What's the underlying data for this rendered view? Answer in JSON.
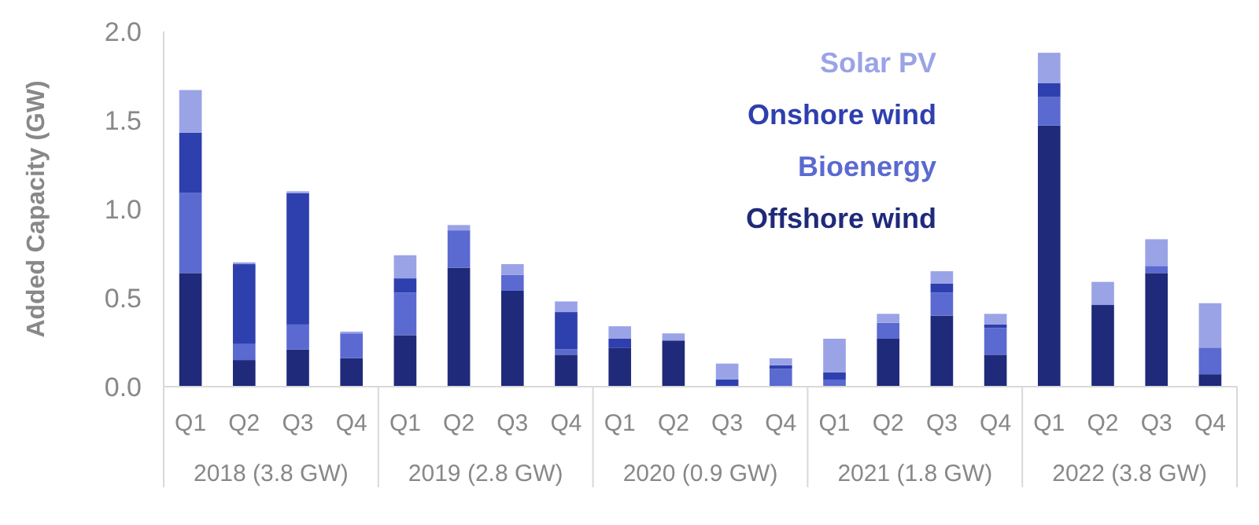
{
  "chart_data": {
    "type": "bar",
    "stacked": true,
    "ylabel": "Added Capacity (GW)",
    "categories": [
      "Q1",
      "Q2",
      "Q3",
      "Q4",
      "Q1",
      "Q2",
      "Q3",
      "Q4",
      "Q1",
      "Q2",
      "Q3",
      "Q4",
      "Q1",
      "Q2",
      "Q3",
      "Q4",
      "Q1",
      "Q2",
      "Q3",
      "Q4"
    ],
    "series": [
      {
        "name": "Offshore wind",
        "color": "#1f2a7a",
        "values": [
          0.64,
          0.15,
          0.21,
          0.16,
          0.29,
          0.67,
          0.54,
          0.18,
          0.22,
          0.26,
          0,
          0,
          0,
          0.27,
          0.4,
          0.18,
          1.47,
          0.46,
          0.64,
          0.07
        ]
      },
      {
        "name": "Bioenergy",
        "color": "#5b6ad0",
        "values": [
          0.45,
          0.09,
          0.14,
          0.14,
          0.24,
          0.21,
          0.09,
          0.03,
          0,
          0,
          0,
          0.1,
          0.04,
          0.09,
          0.13,
          0.15,
          0.16,
          0,
          0.04,
          0.15
        ]
      },
      {
        "name": "Onshore wind",
        "color": "#2e3fae",
        "values": [
          0.34,
          0.45,
          0.74,
          0,
          0.08,
          0,
          0,
          0.21,
          0.05,
          0,
          0.04,
          0.02,
          0.04,
          0,
          0.05,
          0.02,
          0.08,
          0,
          0,
          0
        ]
      },
      {
        "name": "Solar PV",
        "color": "#9aa3e6",
        "values": [
          0.24,
          0.01,
          0.01,
          0.01,
          0.13,
          0.03,
          0.06,
          0.06,
          0.07,
          0.04,
          0.09,
          0.04,
          0.19,
          0.05,
          0.07,
          0.06,
          0.17,
          0.13,
          0.15,
          0.25
        ]
      }
    ],
    "annotations": [
      "2018 (3.8 GW)",
      "2019 (2.8 GW)",
      "2020 (0.9 GW)",
      "2021 (1.8 GW)",
      "2022 (3.8 GW)"
    ],
    "ylim": [
      0,
      2
    ],
    "yticks": [
      {
        "value": 0,
        "label": "0.0"
      },
      {
        "value": 0.5,
        "label": "0.5"
      },
      {
        "value": 1,
        "label": "1.0"
      },
      {
        "value": 1.5,
        "label": "1.5"
      },
      {
        "value": 2,
        "label": "2.0"
      }
    ],
    "legend": "top right",
    "grid": false
  }
}
